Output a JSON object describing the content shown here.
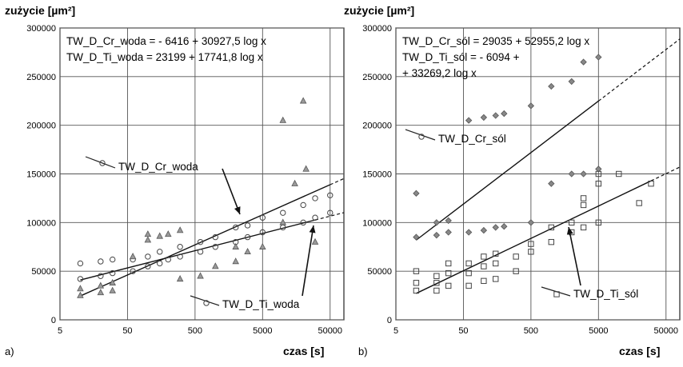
{
  "chart_data": [
    {
      "type": "scatter",
      "panel_label": "a)",
      "ylabel": "zużycie [µm²]",
      "xlabel": "czas [s]",
      "x_scale": "log",
      "xlim": [
        5,
        80000
      ],
      "ylim": [
        0,
        300000
      ],
      "x_ticks": [
        "5",
        "50",
        "500",
        "5000",
        "50000"
      ],
      "y_ticks": [
        "0",
        "50000",
        "100000",
        "150000",
        "200000",
        "250000",
        "300000"
      ],
      "grid": true,
      "equations": [
        "TW_D_Cr_woda = - 6416 + 30927,5 log x",
        "TW_D_Ti_woda = 23199 + 17741,8 log x"
      ],
      "series": [
        {
          "name": "TW_D_Cr_woda",
          "marker": "circle",
          "fit": {
            "a": -6416,
            "b": 30927.5
          },
          "points": [
            [
              10,
              42000
            ],
            [
              10,
              58000
            ],
            [
              20,
              45000
            ],
            [
              20,
              60000
            ],
            [
              30,
              48000
            ],
            [
              30,
              62000
            ],
            [
              60,
              50000
            ],
            [
              60,
              62000
            ],
            [
              100,
              55000
            ],
            [
              100,
              65000
            ],
            [
              150,
              58000
            ],
            [
              150,
              70000
            ],
            [
              200,
              62000
            ],
            [
              300,
              65000
            ],
            [
              300,
              75000
            ],
            [
              600,
              70000
            ],
            [
              600,
              80000
            ],
            [
              1000,
              75000
            ],
            [
              1000,
              85000
            ],
            [
              2000,
              80000
            ],
            [
              2000,
              95000
            ],
            [
              3000,
              85000
            ],
            [
              3000,
              97000
            ],
            [
              5000,
              90000
            ],
            [
              5000,
              105000
            ],
            [
              10000,
              95000
            ],
            [
              10000,
              110000
            ],
            [
              20000,
              100000
            ],
            [
              20000,
              118000
            ],
            [
              30000,
              105000
            ],
            [
              30000,
              125000
            ],
            [
              50000,
              110000
            ],
            [
              50000,
              128000
            ]
          ]
        },
        {
          "name": "TW_D_Ti_woda",
          "marker": "triangle",
          "fit": {
            "a": 23199,
            "b": 17741.8
          },
          "points": [
            [
              10,
              25000
            ],
            [
              10,
              32000
            ],
            [
              20,
              28000
            ],
            [
              20,
              35000
            ],
            [
              30,
              30000
            ],
            [
              30,
              38000
            ],
            [
              60,
              65000
            ],
            [
              100,
              82000
            ],
            [
              100,
              88000
            ],
            [
              150,
              86000
            ],
            [
              200,
              88000
            ],
            [
              300,
              42000
            ],
            [
              300,
              92000
            ],
            [
              600,
              45000
            ],
            [
              1000,
              55000
            ],
            [
              2000,
              60000
            ],
            [
              2000,
              75000
            ],
            [
              3000,
              70000
            ],
            [
              5000,
              75000
            ],
            [
              10000,
              205000
            ],
            [
              10000,
              100000
            ],
            [
              15000,
              140000
            ],
            [
              20000,
              225000
            ],
            [
              22000,
              155000
            ],
            [
              30000,
              80000
            ]
          ]
        }
      ],
      "annotations": [
        {
          "text": "TW_D_Cr_woda",
          "marker": "circle"
        },
        {
          "text": "TW_D_Ti_woda",
          "marker": "circle"
        }
      ]
    },
    {
      "type": "scatter",
      "panel_label": "b)",
      "ylabel": "zużycie [µm²]",
      "xlabel": "czas [s]",
      "x_scale": "log",
      "xlim": [
        5,
        80000
      ],
      "ylim": [
        0,
        300000
      ],
      "x_ticks": [
        "5",
        "50",
        "500",
        "5000",
        "50000"
      ],
      "y_ticks": [
        "0",
        "50000",
        "100000",
        "150000",
        "200000",
        "250000",
        "300000"
      ],
      "grid": true,
      "equations": [
        "TW_D_Cr_sól = 29035 + 52955,2 log x",
        "TW_D_Ti_sól = - 6094 +",
        "+ 33269,2 log x"
      ],
      "series": [
        {
          "name": "TW_D_Cr_sól",
          "marker": "diamond",
          "fit": {
            "a": 29035,
            "b": 52955.2
          },
          "points": [
            [
              10,
              85000
            ],
            [
              10,
              130000
            ],
            [
              20,
              87000
            ],
            [
              20,
              100000
            ],
            [
              30,
              90000
            ],
            [
              30,
              102000
            ],
            [
              60,
              90000
            ],
            [
              60,
              205000
            ],
            [
              100,
              92000
            ],
            [
              100,
              208000
            ],
            [
              150,
              95000
            ],
            [
              150,
              210000
            ],
            [
              200,
              96000
            ],
            [
              200,
              212000
            ],
            [
              500,
              100000
            ],
            [
              500,
              220000
            ],
            [
              1000,
              140000
            ],
            [
              1000,
              240000
            ],
            [
              2000,
              150000
            ],
            [
              2000,
              245000
            ],
            [
              3000,
              150000
            ],
            [
              3000,
              265000
            ],
            [
              5000,
              155000
            ],
            [
              5000,
              270000
            ]
          ]
        },
        {
          "name": "TW_D_Ti_sól",
          "marker": "square",
          "fit": {
            "a": -6094,
            "b": 33269.2
          },
          "points": [
            [
              10,
              30000
            ],
            [
              10,
              38000
            ],
            [
              10,
              50000
            ],
            [
              20,
              30000
            ],
            [
              20,
              38000
            ],
            [
              20,
              45000
            ],
            [
              30,
              35000
            ],
            [
              30,
              48000
            ],
            [
              30,
              58000
            ],
            [
              60,
              35000
            ],
            [
              60,
              48000
            ],
            [
              60,
              58000
            ],
            [
              100,
              40000
            ],
            [
              100,
              55000
            ],
            [
              100,
              65000
            ],
            [
              150,
              42000
            ],
            [
              150,
              58000
            ],
            [
              150,
              68000
            ],
            [
              300,
              50000
            ],
            [
              300,
              65000
            ],
            [
              500,
              70000
            ],
            [
              500,
              78000
            ],
            [
              1000,
              80000
            ],
            [
              1000,
              95000
            ],
            [
              2000,
              90000
            ],
            [
              2000,
              100000
            ],
            [
              3000,
              95000
            ],
            [
              3000,
              118000
            ],
            [
              3000,
              125000
            ],
            [
              5000,
              100000
            ],
            [
              5000,
              140000
            ],
            [
              5000,
              150000
            ],
            [
              10000,
              150000
            ],
            [
              20000,
              120000
            ],
            [
              30000,
              140000
            ]
          ]
        }
      ],
      "annotations": [
        {
          "text": "TW_D_Cr_sól",
          "marker": "circle"
        },
        {
          "text": "TW_D_Ti_sól",
          "marker": "square"
        }
      ]
    }
  ]
}
